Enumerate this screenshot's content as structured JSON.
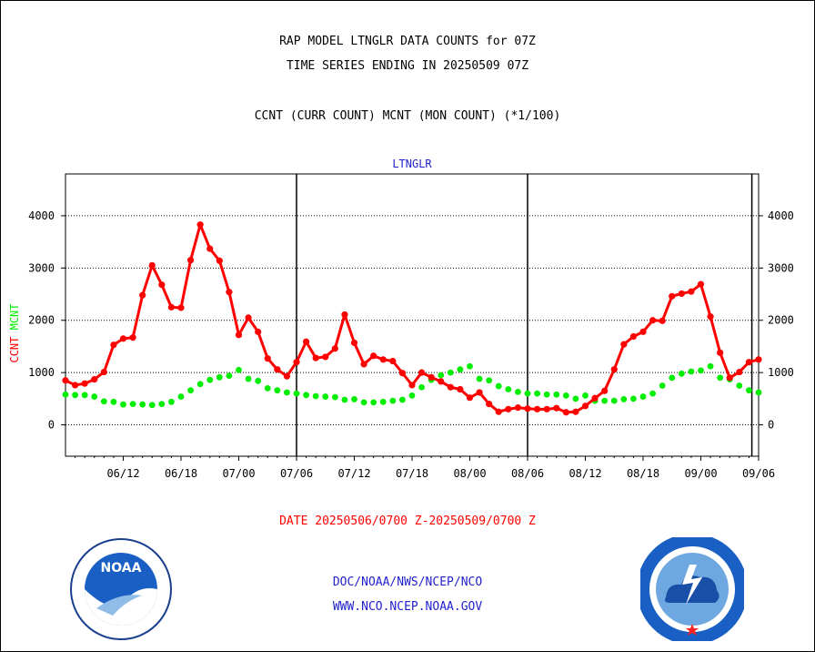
{
  "header": {
    "title1": "RAP MODEL LTNGLR DATA COUNTS for 07Z",
    "title2": "TIME SERIES ENDING IN 20250509 07Z",
    "subtitle": "CCNT (CURR COUNT) MCNT (MON COUNT) (*1/100)"
  },
  "footer": {
    "date_range": "DATE 20250506/0700 Z-20250509/0700 Z",
    "org": "DOC/NOAA/NWS/NCEP/NCO",
    "url": "WWW.NCO.NCEP.NOAA.GOV"
  },
  "logos": {
    "left": "NOAA",
    "right": "NATIONAL WEATHER SERVICE"
  },
  "colors": {
    "ccnt": "#ff0000",
    "mcnt": "#00ee00",
    "vertical_lines": "#000000",
    "panel_label": "#2222cc"
  },
  "chart_data": {
    "type": "line",
    "panel_label": "LTNGLR",
    "ylabel_red": "CCNT",
    "ylabel_green": "MCNT",
    "ylim": [
      -600,
      4800
    ],
    "xlim": [
      0,
      72
    ],
    "yticks": [
      0,
      1000,
      2000,
      3000,
      4000
    ],
    "ytick_labels": [
      "0",
      "1000",
      "2000",
      "3000",
      "4000"
    ],
    "xticks": [
      6,
      12,
      18,
      24,
      30,
      36,
      42,
      48,
      54,
      60,
      66,
      72
    ],
    "xtick_labels": [
      "06/12",
      "06/18",
      "07/00",
      "07/06",
      "07/12",
      "07/18",
      "08/00",
      "08/06",
      "08/12",
      "08/18",
      "09/00",
      "09/06"
    ],
    "vertical_lines_x": [
      24,
      48,
      71.3
    ],
    "grid": "horizontal-dotted",
    "series": [
      {
        "name": "CCNT",
        "x": [
          0,
          1,
          2,
          3,
          4,
          5,
          6,
          7,
          8,
          9,
          10,
          11,
          12,
          13,
          14,
          15,
          16,
          17,
          18,
          19,
          20,
          21,
          22,
          23,
          24,
          25,
          26,
          27,
          28,
          29,
          30,
          31,
          32,
          33,
          34,
          35,
          36,
          37,
          38,
          39,
          40,
          41,
          42,
          43,
          44,
          45,
          46,
          47,
          48,
          49,
          50,
          51,
          52,
          53,
          54,
          55,
          56,
          57,
          58,
          59,
          60,
          61,
          62,
          63,
          64,
          65,
          66,
          67,
          68,
          69,
          70,
          71,
          72
        ],
        "values": [
          850,
          760,
          790,
          870,
          1010,
          1530,
          1650,
          1670,
          2480,
          3050,
          2680,
          2250,
          2240,
          3150,
          3830,
          3370,
          3140,
          2540,
          1720,
          2050,
          1780,
          1270,
          1060,
          930,
          1200,
          1590,
          1280,
          1300,
          1460,
          2110,
          1570,
          1160,
          1320,
          1250,
          1220,
          990,
          760,
          1000,
          910,
          830,
          720,
          680,
          520,
          620,
          400,
          250,
          300,
          330,
          310,
          300,
          300,
          320,
          240,
          250,
          360,
          510,
          650,
          1060,
          1540,
          1690,
          1780,
          2000,
          1990,
          2460,
          2510,
          2550,
          2690,
          2070,
          1380,
          900,
          1010,
          1200,
          1250
        ]
      },
      {
        "name": "MCNT",
        "x": [
          0,
          1,
          2,
          3,
          4,
          5,
          6,
          7,
          8,
          9,
          10,
          11,
          12,
          13,
          14,
          15,
          16,
          17,
          18,
          19,
          20,
          21,
          22,
          23,
          24,
          25,
          26,
          27,
          28,
          29,
          30,
          31,
          32,
          33,
          34,
          35,
          36,
          37,
          38,
          39,
          40,
          41,
          42,
          43,
          44,
          45,
          46,
          47,
          48,
          49,
          50,
          51,
          52,
          53,
          54,
          55,
          56,
          57,
          58,
          59,
          60,
          61,
          62,
          63,
          64,
          65,
          66,
          67,
          68,
          69,
          70,
          71,
          72
        ],
        "values": [
          580,
          570,
          570,
          540,
          450,
          440,
          390,
          400,
          390,
          380,
          400,
          440,
          540,
          660,
          780,
          860,
          910,
          940,
          1050,
          880,
          840,
          700,
          660,
          620,
          600,
          570,
          550,
          540,
          530,
          480,
          490,
          430,
          430,
          440,
          460,
          480,
          560,
          720,
          860,
          950,
          1000,
          1060,
          1120,
          880,
          850,
          740,
          680,
          630,
          600,
          600,
          580,
          580,
          560,
          500,
          560,
          460,
          460,
          460,
          490,
          500,
          540,
          600,
          750,
          900,
          980,
          1020,
          1040,
          1120,
          900,
          870,
          750,
          660,
          620
        ]
      }
    ]
  }
}
